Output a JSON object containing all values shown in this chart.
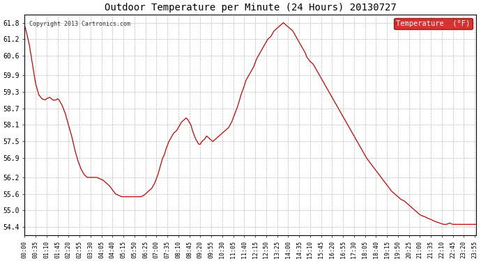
{
  "title": "Outdoor Temperature per Minute (24 Hours) 20130727",
  "copyright_text": "Copyright 2013 Cartronics.com",
  "legend_label": "Temperature  (°F)",
  "line_color": "#cc0000",
  "legend_bg": "#cc0000",
  "legend_text_color": "#ffffff",
  "bg_color": "#ffffff",
  "grid_color": "#aaaaaa",
  "ylim": [
    54.1,
    62.1
  ],
  "yticks": [
    54.4,
    55.0,
    55.6,
    56.2,
    56.9,
    57.5,
    58.1,
    58.7,
    59.3,
    59.9,
    60.6,
    61.2,
    61.8
  ],
  "total_minutes": 1440,
  "x_tick_interval": 35,
  "key_points": [
    [
      0,
      61.7
    ],
    [
      5,
      61.5
    ],
    [
      15,
      61.0
    ],
    [
      25,
      60.3
    ],
    [
      35,
      59.6
    ],
    [
      45,
      59.2
    ],
    [
      55,
      59.05
    ],
    [
      65,
      59.0
    ],
    [
      70,
      59.05
    ],
    [
      80,
      59.1
    ],
    [
      85,
      59.05
    ],
    [
      90,
      59.0
    ],
    [
      100,
      59.0
    ],
    [
      105,
      59.05
    ],
    [
      110,
      59.0
    ],
    [
      120,
      58.8
    ],
    [
      130,
      58.5
    ],
    [
      140,
      58.1
    ],
    [
      150,
      57.7
    ],
    [
      160,
      57.2
    ],
    [
      170,
      56.8
    ],
    [
      180,
      56.5
    ],
    [
      190,
      56.3
    ],
    [
      200,
      56.2
    ],
    [
      210,
      56.2
    ],
    [
      220,
      56.2
    ],
    [
      230,
      56.2
    ],
    [
      240,
      56.15
    ],
    [
      250,
      56.1
    ],
    [
      260,
      56.0
    ],
    [
      270,
      55.9
    ],
    [
      280,
      55.75
    ],
    [
      290,
      55.6
    ],
    [
      300,
      55.55
    ],
    [
      310,
      55.5
    ],
    [
      320,
      55.5
    ],
    [
      325,
      55.5
    ],
    [
      330,
      55.5
    ],
    [
      335,
      55.5
    ],
    [
      340,
      55.5
    ],
    [
      345,
      55.5
    ],
    [
      350,
      55.5
    ],
    [
      355,
      55.5
    ],
    [
      360,
      55.5
    ],
    [
      365,
      55.5
    ],
    [
      370,
      55.5
    ],
    [
      375,
      55.52
    ],
    [
      380,
      55.55
    ],
    [
      385,
      55.6
    ],
    [
      390,
      55.65
    ],
    [
      395,
      55.7
    ],
    [
      400,
      55.75
    ],
    [
      405,
      55.8
    ],
    [
      410,
      55.9
    ],
    [
      415,
      56.0
    ],
    [
      420,
      56.15
    ],
    [
      425,
      56.3
    ],
    [
      430,
      56.5
    ],
    [
      440,
      56.9
    ],
    [
      445,
      57.0
    ],
    [
      450,
      57.2
    ],
    [
      455,
      57.35
    ],
    [
      460,
      57.5
    ],
    [
      465,
      57.6
    ],
    [
      470,
      57.7
    ],
    [
      475,
      57.8
    ],
    [
      480,
      57.85
    ],
    [
      485,
      57.9
    ],
    [
      490,
      58.0
    ],
    [
      495,
      58.1
    ],
    [
      500,
      58.2
    ],
    [
      505,
      58.25
    ],
    [
      510,
      58.3
    ],
    [
      515,
      58.35
    ],
    [
      520,
      58.3
    ],
    [
      525,
      58.2
    ],
    [
      530,
      58.1
    ],
    [
      535,
      57.9
    ],
    [
      540,
      57.75
    ],
    [
      545,
      57.6
    ],
    [
      550,
      57.5
    ],
    [
      555,
      57.4
    ],
    [
      560,
      57.4
    ],
    [
      565,
      57.5
    ],
    [
      570,
      57.55
    ],
    [
      575,
      57.6
    ],
    [
      580,
      57.7
    ],
    [
      585,
      57.65
    ],
    [
      590,
      57.6
    ],
    [
      595,
      57.55
    ],
    [
      600,
      57.5
    ],
    [
      605,
      57.55
    ],
    [
      610,
      57.6
    ],
    [
      615,
      57.65
    ],
    [
      620,
      57.7
    ],
    [
      625,
      57.75
    ],
    [
      630,
      57.8
    ],
    [
      635,
      57.85
    ],
    [
      640,
      57.9
    ],
    [
      645,
      57.95
    ],
    [
      650,
      58.0
    ],
    [
      655,
      58.1
    ],
    [
      660,
      58.2
    ],
    [
      665,
      58.35
    ],
    [
      670,
      58.5
    ],
    [
      675,
      58.65
    ],
    [
      680,
      58.8
    ],
    [
      685,
      59.0
    ],
    [
      690,
      59.2
    ],
    [
      695,
      59.35
    ],
    [
      700,
      59.5
    ],
    [
      705,
      59.7
    ],
    [
      710,
      59.8
    ],
    [
      715,
      59.9
    ],
    [
      720,
      60.0
    ],
    [
      725,
      60.1
    ],
    [
      730,
      60.2
    ],
    [
      735,
      60.35
    ],
    [
      740,
      60.5
    ],
    [
      745,
      60.6
    ],
    [
      750,
      60.7
    ],
    [
      755,
      60.8
    ],
    [
      760,
      60.9
    ],
    [
      765,
      61.0
    ],
    [
      770,
      61.1
    ],
    [
      775,
      61.2
    ],
    [
      780,
      61.25
    ],
    [
      785,
      61.3
    ],
    [
      790,
      61.4
    ],
    [
      795,
      61.5
    ],
    [
      800,
      61.55
    ],
    [
      805,
      61.6
    ],
    [
      810,
      61.65
    ],
    [
      815,
      61.7
    ],
    [
      820,
      61.75
    ],
    [
      825,
      61.8
    ],
    [
      830,
      61.75
    ],
    [
      835,
      61.7
    ],
    [
      840,
      61.65
    ],
    [
      845,
      61.6
    ],
    [
      850,
      61.55
    ],
    [
      855,
      61.5
    ],
    [
      860,
      61.4
    ],
    [
      865,
      61.3
    ],
    [
      870,
      61.2
    ],
    [
      875,
      61.1
    ],
    [
      880,
      61.0
    ],
    [
      885,
      60.9
    ],
    [
      890,
      60.8
    ],
    [
      895,
      60.7
    ],
    [
      900,
      60.55
    ],
    [
      910,
      60.4
    ],
    [
      920,
      60.3
    ],
    [
      930,
      60.1
    ],
    [
      940,
      59.9
    ],
    [
      950,
      59.7
    ],
    [
      960,
      59.5
    ],
    [
      970,
      59.3
    ],
    [
      980,
      59.1
    ],
    [
      990,
      58.9
    ],
    [
      1000,
      58.7
    ],
    [
      1010,
      58.5
    ],
    [
      1020,
      58.3
    ],
    [
      1030,
      58.1
    ],
    [
      1040,
      57.9
    ],
    [
      1050,
      57.7
    ],
    [
      1060,
      57.5
    ],
    [
      1070,
      57.3
    ],
    [
      1080,
      57.1
    ],
    [
      1090,
      56.9
    ],
    [
      1100,
      56.75
    ],
    [
      1110,
      56.6
    ],
    [
      1120,
      56.45
    ],
    [
      1130,
      56.3
    ],
    [
      1140,
      56.15
    ],
    [
      1150,
      56.0
    ],
    [
      1160,
      55.85
    ],
    [
      1170,
      55.7
    ],
    [
      1180,
      55.6
    ],
    [
      1190,
      55.5
    ],
    [
      1200,
      55.4
    ],
    [
      1210,
      55.35
    ],
    [
      1215,
      55.3
    ],
    [
      1220,
      55.25
    ],
    [
      1225,
      55.2
    ],
    [
      1230,
      55.15
    ],
    [
      1235,
      55.1
    ],
    [
      1240,
      55.05
    ],
    [
      1245,
      55.0
    ],
    [
      1250,
      54.95
    ],
    [
      1255,
      54.9
    ],
    [
      1260,
      54.85
    ],
    [
      1265,
      54.82
    ],
    [
      1270,
      54.8
    ],
    [
      1275,
      54.78
    ],
    [
      1280,
      54.75
    ],
    [
      1285,
      54.72
    ],
    [
      1290,
      54.7
    ],
    [
      1295,
      54.68
    ],
    [
      1300,
      54.65
    ],
    [
      1305,
      54.62
    ],
    [
      1310,
      54.6
    ],
    [
      1315,
      54.58
    ],
    [
      1320,
      54.56
    ],
    [
      1325,
      54.54
    ],
    [
      1330,
      54.52
    ],
    [
      1335,
      54.5
    ],
    [
      1340,
      54.5
    ],
    [
      1345,
      54.5
    ],
    [
      1350,
      54.52
    ],
    [
      1355,
      54.55
    ],
    [
      1360,
      54.52
    ],
    [
      1365,
      54.5
    ],
    [
      1370,
      54.5
    ],
    [
      1375,
      54.5
    ],
    [
      1380,
      54.5
    ],
    [
      1385,
      54.5
    ],
    [
      1390,
      54.5
    ],
    [
      1395,
      54.5
    ],
    [
      1400,
      54.5
    ],
    [
      1405,
      54.5
    ],
    [
      1410,
      54.5
    ],
    [
      1415,
      54.5
    ],
    [
      1420,
      54.5
    ],
    [
      1425,
      54.5
    ],
    [
      1430,
      54.5
    ],
    [
      1435,
      54.5
    ],
    [
      1439,
      54.5
    ]
  ]
}
